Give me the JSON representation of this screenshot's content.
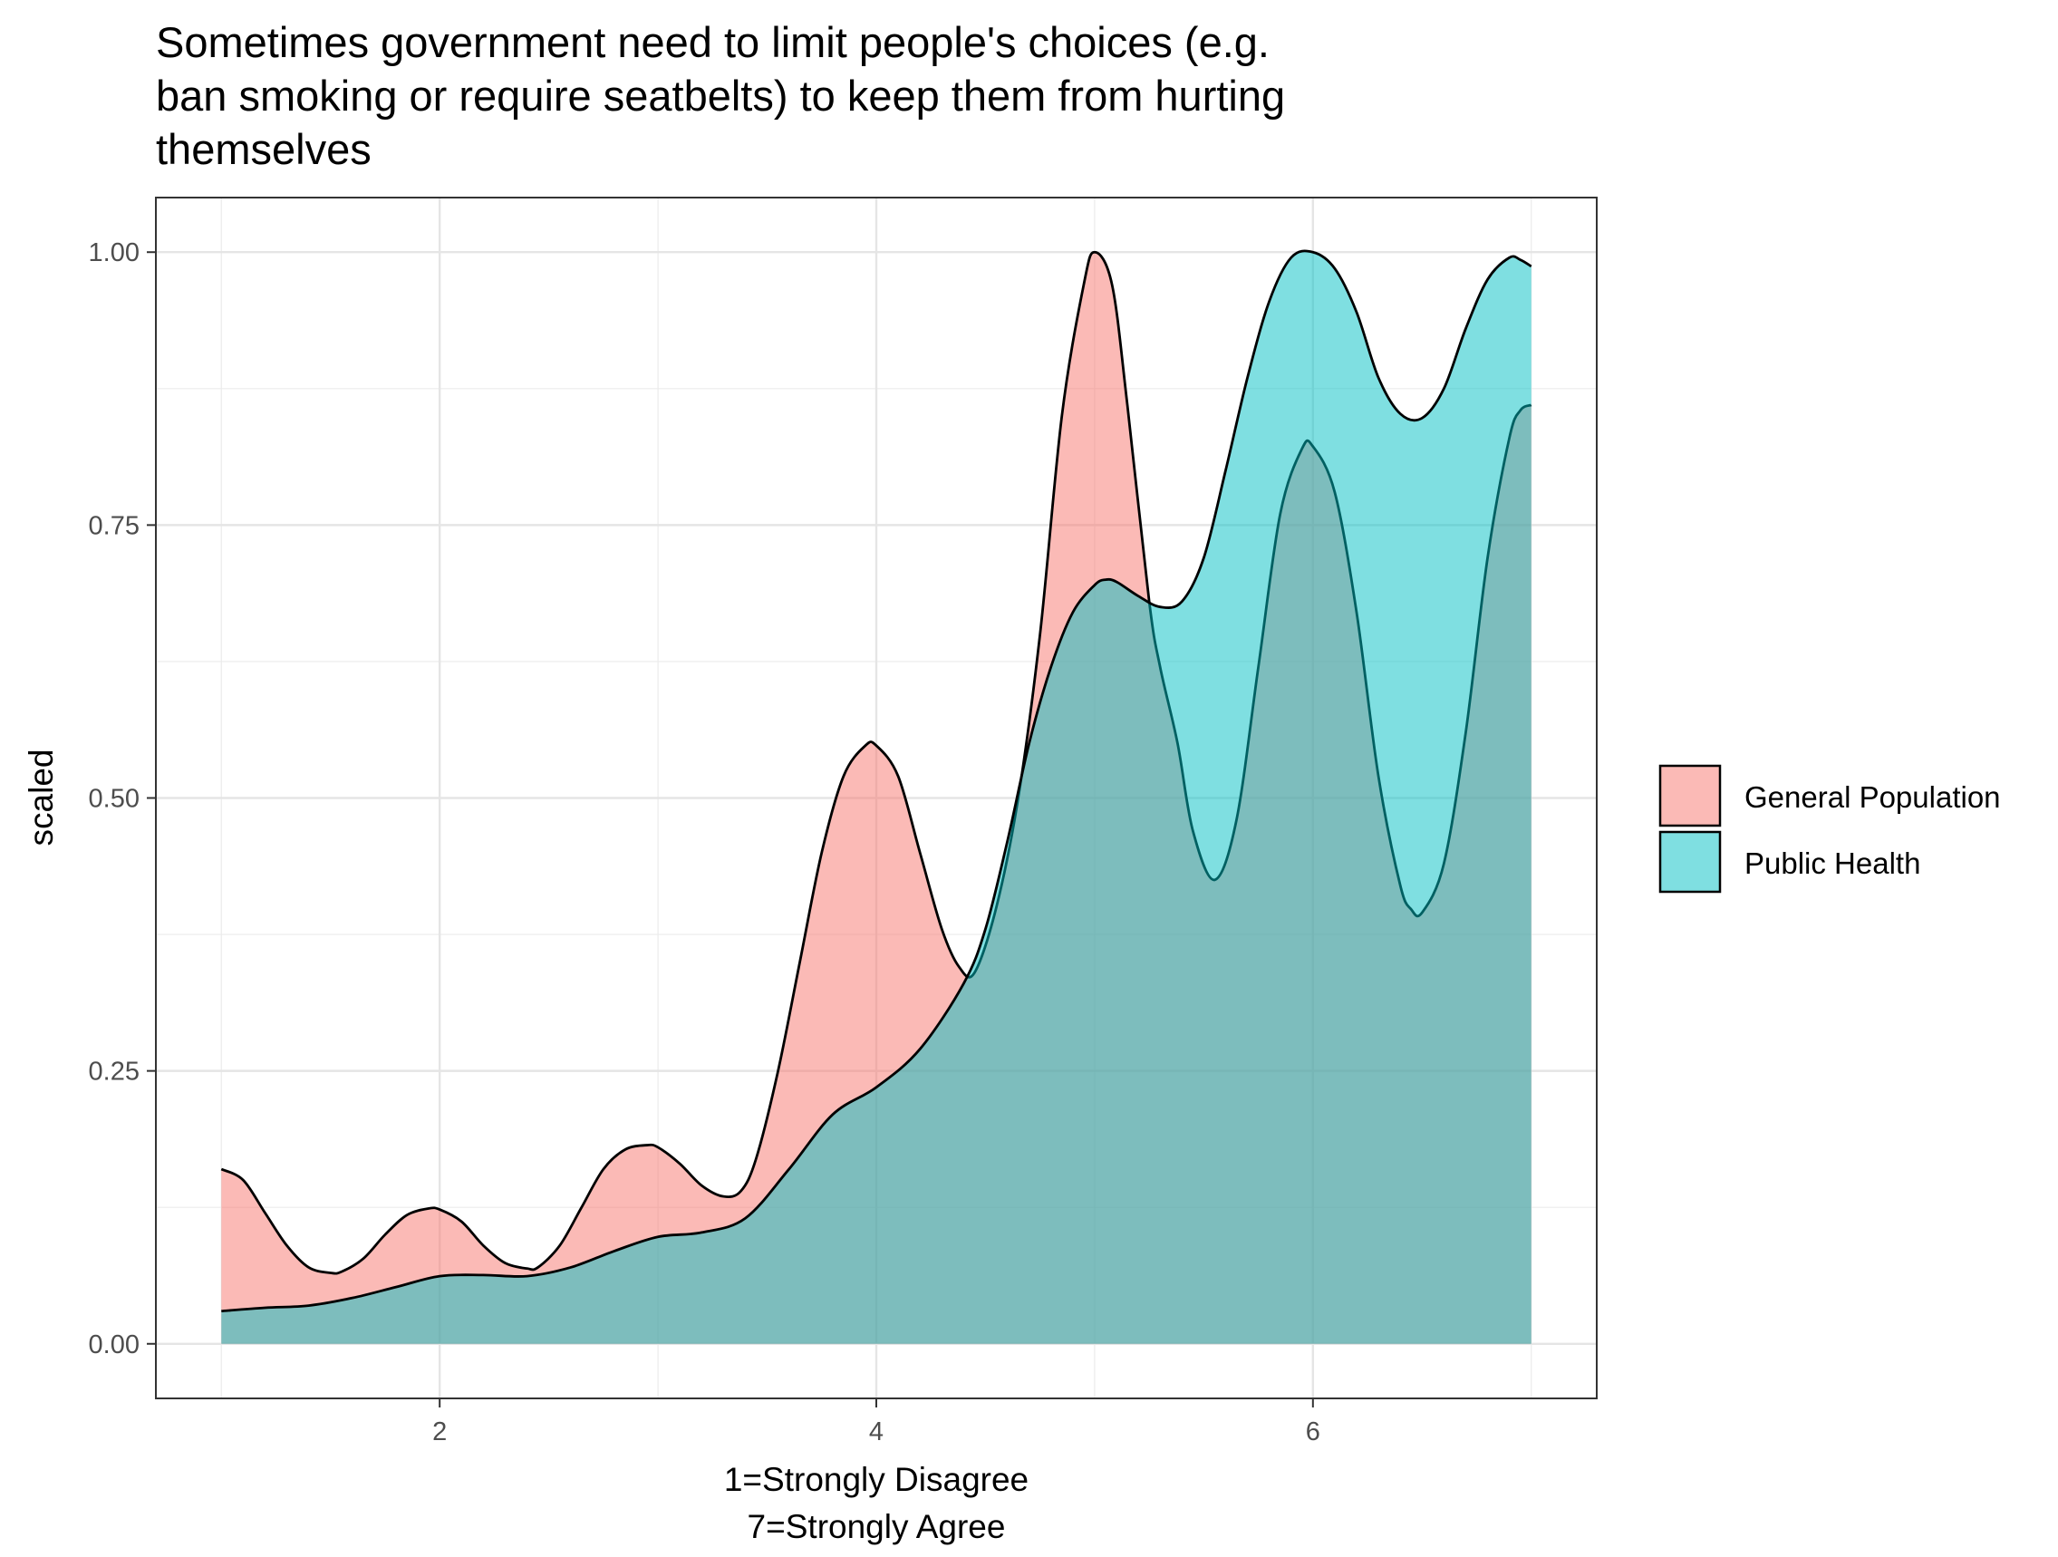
{
  "chart_data": {
    "type": "area",
    "subtype": "density",
    "title_lines": [
      "Sometimes government need to limit people's choices (e.g.",
      "ban smoking or require seatbelts) to keep them from hurting",
      "themselves"
    ],
    "xlabel_lines": [
      "1=Strongly Disagree",
      "7=Strongly Agree"
    ],
    "ylabel": "scaled",
    "xlim": [
      0.7,
      7.3
    ],
    "ylim": [
      -0.05,
      1.05
    ],
    "x_ticks": [
      2,
      4,
      6
    ],
    "x_tick_labels": [
      "2",
      "4",
      "6"
    ],
    "y_ticks": [
      0,
      0.25,
      0.5,
      0.75,
      1.0
    ],
    "y_tick_labels": [
      "0.00",
      "0.25",
      "0.50",
      "0.75",
      "1.00"
    ],
    "grid": true,
    "legend_position": "right",
    "series": [
      {
        "name": "General Population",
        "color": "#F8766D",
        "opacity": 0.5,
        "x": [
          1.0,
          1.1,
          1.2,
          1.3,
          1.4,
          1.5,
          1.55,
          1.65,
          1.75,
          1.85,
          1.95,
          2.0,
          2.1,
          2.2,
          2.3,
          2.4,
          2.45,
          2.55,
          2.65,
          2.75,
          2.85,
          2.95,
          3.0,
          3.1,
          3.2,
          3.3,
          3.38,
          3.45,
          3.55,
          3.65,
          3.75,
          3.85,
          3.95,
          4.0,
          4.1,
          4.2,
          4.3,
          4.38,
          4.45,
          4.55,
          4.65,
          4.75,
          4.85,
          4.95,
          5.0,
          5.08,
          5.15,
          5.25,
          5.3,
          5.38,
          5.45,
          5.55,
          5.65,
          5.75,
          5.85,
          5.95,
          6.0,
          6.1,
          6.2,
          6.3,
          6.4,
          6.45,
          6.5,
          6.6,
          6.7,
          6.8,
          6.9,
          6.95,
          7.0
        ],
        "y": [
          0.16,
          0.15,
          0.12,
          0.09,
          0.07,
          0.065,
          0.066,
          0.078,
          0.1,
          0.118,
          0.124,
          0.123,
          0.112,
          0.09,
          0.074,
          0.069,
          0.07,
          0.09,
          0.125,
          0.16,
          0.178,
          0.182,
          0.18,
          0.165,
          0.145,
          0.135,
          0.14,
          0.17,
          0.25,
          0.35,
          0.45,
          0.52,
          0.548,
          0.548,
          0.52,
          0.45,
          0.38,
          0.345,
          0.34,
          0.4,
          0.5,
          0.65,
          0.85,
          0.97,
          1.0,
          0.97,
          0.86,
          0.68,
          0.62,
          0.55,
          0.47,
          0.425,
          0.48,
          0.62,
          0.76,
          0.82,
          0.822,
          0.78,
          0.67,
          0.52,
          0.42,
          0.398,
          0.395,
          0.44,
          0.56,
          0.72,
          0.83,
          0.855,
          0.86
        ]
      },
      {
        "name": "Public Health",
        "color": "#00BFC4",
        "opacity": 0.5,
        "x": [
          1.0,
          1.2,
          1.4,
          1.6,
          1.8,
          2.0,
          2.2,
          2.4,
          2.6,
          2.8,
          3.0,
          3.2,
          3.4,
          3.6,
          3.8,
          4.0,
          4.2,
          4.4,
          4.5,
          4.6,
          4.7,
          4.8,
          4.9,
          5.0,
          5.05,
          5.1,
          5.2,
          5.3,
          5.4,
          5.5,
          5.6,
          5.7,
          5.8,
          5.9,
          6.0,
          6.1,
          6.2,
          6.3,
          6.4,
          6.5,
          6.6,
          6.7,
          6.8,
          6.9,
          6.95,
          7.0
        ],
        "y": [
          0.03,
          0.033,
          0.035,
          0.042,
          0.052,
          0.062,
          0.063,
          0.062,
          0.07,
          0.085,
          0.098,
          0.102,
          0.115,
          0.16,
          0.21,
          0.235,
          0.27,
          0.33,
          0.38,
          0.46,
          0.55,
          0.62,
          0.67,
          0.695,
          0.7,
          0.698,
          0.685,
          0.675,
          0.68,
          0.72,
          0.8,
          0.885,
          0.955,
          0.995,
          1.0,
          0.985,
          0.945,
          0.885,
          0.852,
          0.848,
          0.875,
          0.93,
          0.975,
          0.995,
          0.993,
          0.987
        ]
      }
    ]
  }
}
